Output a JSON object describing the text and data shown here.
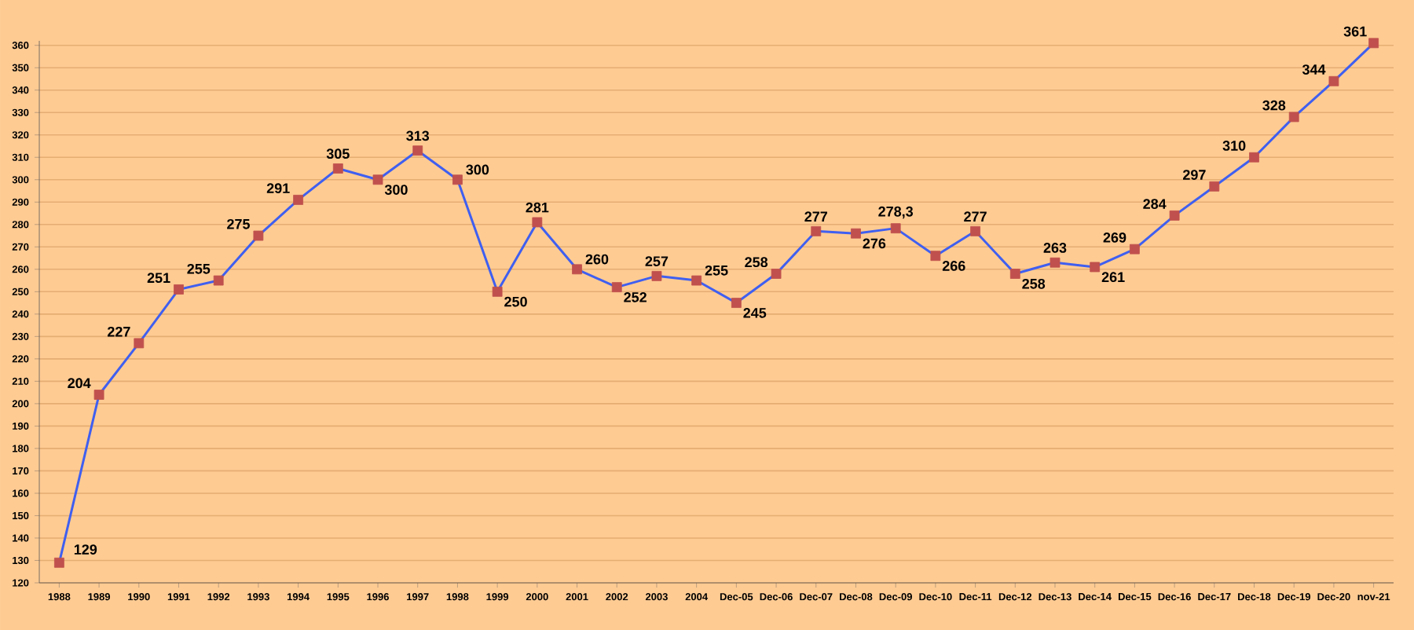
{
  "chart_data": {
    "type": "line",
    "categories": [
      "1988",
      "1989",
      "1990",
      "1991",
      "1992",
      "1993",
      "1994",
      "1995",
      "1996",
      "1997",
      "1998",
      "1999",
      "2000",
      "2001",
      "2002",
      "2003",
      "2004",
      "Dec-05",
      "Dec-06",
      "Dec-07",
      "Dec-08",
      "Dec-09",
      "Dec-10",
      "Dec-11",
      "Dec-12",
      "Dec-13",
      "Dec-14",
      "Dec-15",
      "Dec-16",
      "Dec-17",
      "Dec-18",
      "Dec-19",
      "Dec-20",
      "nov-21"
    ],
    "series": [
      {
        "color": "#3f5ff0",
        "colors": [
          "#c0504d",
          "#c0504d",
          "#c0504d",
          "#c0504d",
          "#c0504d",
          "#c0504d",
          "#c0504d",
          "#c0504d",
          "#c0504d",
          "#c0504d",
          "#c0504d",
          "#c0504d",
          "#c0504d",
          "#c0504d",
          "#c0504d",
          "#c0504d",
          "#c0504d",
          "#c0504d",
          "#c0504d",
          "#c0504d",
          "#c0504d",
          "#c0504d",
          "#c0504d",
          "#c0504d",
          "#c0504d",
          "#c0504d",
          "#c0504d",
          "#c0504d",
          "#c0504d",
          "#c0504d",
          "#c0504d",
          "#c0504d",
          "#c0504d",
          "#c0504d"
        ],
        "values": [
          129,
          204,
          227,
          251,
          255,
          275,
          291,
          305,
          300,
          313,
          300,
          250,
          281,
          260,
          252,
          257,
          255,
          245,
          258,
          277,
          276,
          278.3,
          266,
          277,
          258,
          263,
          261,
          269,
          284,
          297,
          310,
          328,
          344,
          361
        ],
        "value_labels": [
          "129",
          "204",
          "227",
          "251",
          "255",
          "275",
          "291",
          "305",
          "300",
          "313",
          "300",
          "250",
          "281",
          "260",
          "252",
          "257",
          "255",
          "245",
          "258",
          "277",
          "276",
          "278,3",
          "266",
          "277",
          "258",
          "263",
          "261",
          "269",
          "284",
          "297",
          "310",
          "328",
          "344",
          "361"
        ]
      }
    ],
    "ylim": [
      120,
      362
    ],
    "yticks": [
      120,
      130,
      140,
      150,
      160,
      170,
      180,
      190,
      200,
      210,
      220,
      230,
      240,
      250,
      260,
      270,
      280,
      290,
      300,
      310,
      320,
      330,
      340,
      350,
      360
    ],
    "grid": "y",
    "marker": "square",
    "line_style": "solid"
  }
}
